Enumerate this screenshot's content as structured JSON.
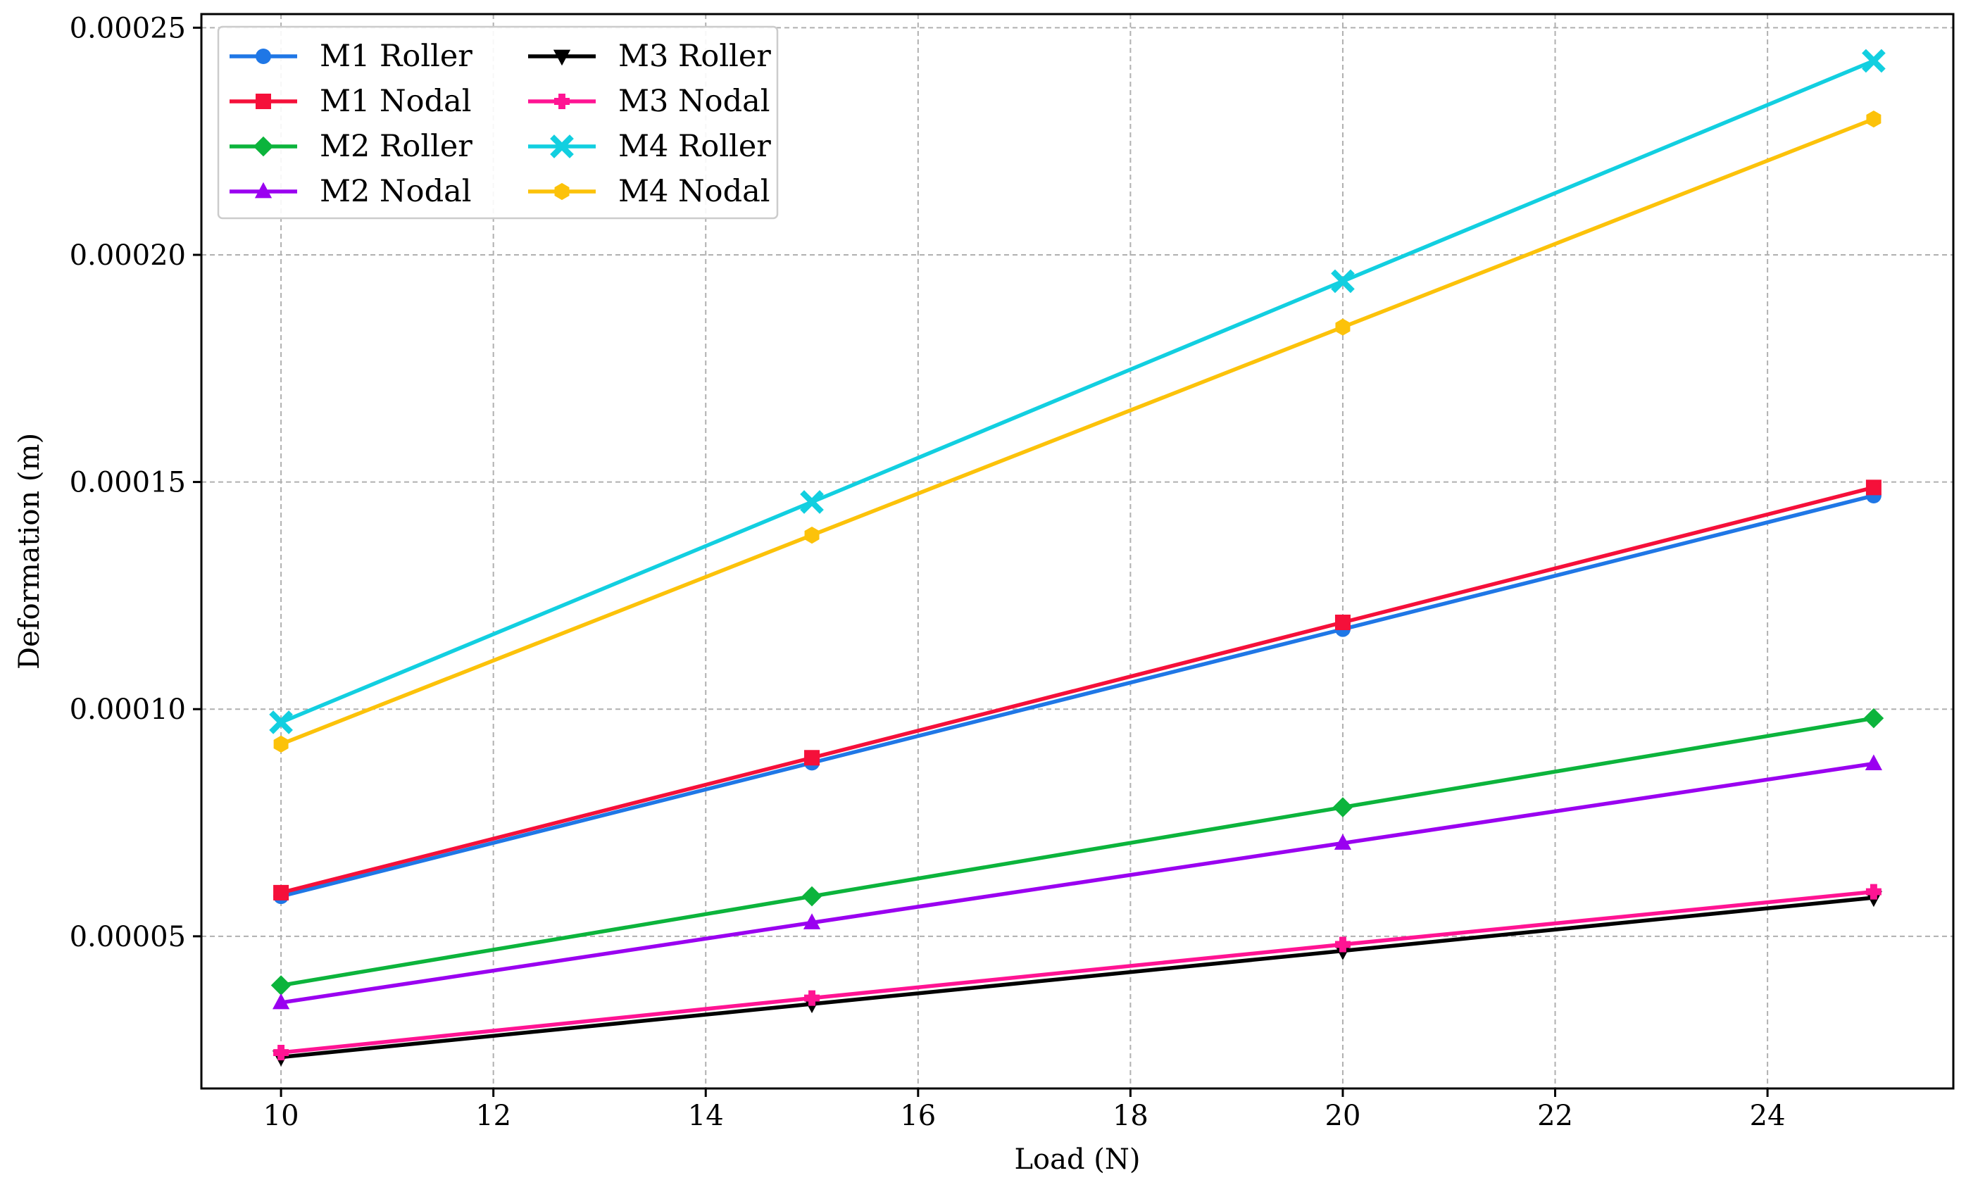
{
  "chart_data": {
    "type": "line",
    "xlabel": "Load (N)",
    "ylabel": "Deformation (m)",
    "x": [
      10,
      15,
      20,
      25
    ],
    "xlim": [
      9.25,
      25.75
    ],
    "ylim": [
      1.65e-05,
      0.000253
    ],
    "x_ticks": [
      10,
      12,
      14,
      16,
      18,
      20,
      22,
      24
    ],
    "x_tick_labels": [
      "10",
      "12",
      "14",
      "16",
      "18",
      "20",
      "22",
      "24"
    ],
    "y_ticks": [
      5e-05,
      0.0001,
      0.00015,
      0.0002,
      0.00025
    ],
    "y_tick_labels": [
      "0.00005",
      "0.00010",
      "0.00015",
      "0.00020",
      "0.00025"
    ],
    "grid": true,
    "legend_placement": "top-left",
    "legend_columns": 2,
    "series": [
      {
        "name": "M1 Roller",
        "color": "#1f77e6",
        "marker": "circle",
        "values": [
          5.88e-05,
          8.82e-05,
          0.0001176,
          0.000147
        ]
      },
      {
        "name": "M1 Nodal",
        "color": "#f5103a",
        "marker": "square",
        "values": [
          5.96e-05,
          8.93e-05,
          0.0001191,
          0.0001488
        ]
      },
      {
        "name": "M2 Roller",
        "color": "#0cb43c",
        "marker": "diamond",
        "values": [
          3.92e-05,
          5.88e-05,
          7.84e-05,
          9.8e-05
        ]
      },
      {
        "name": "M2 Nodal",
        "color": "#9a00f0",
        "marker": "triangle-up",
        "values": [
          3.54e-05,
          5.3e-05,
          7.05e-05,
          8.8e-05
        ]
      },
      {
        "name": "M3 Roller",
        "color": "#000000",
        "marker": "triangle-down",
        "values": [
          2.34e-05,
          3.51e-05,
          4.68e-05,
          5.85e-05
        ]
      },
      {
        "name": "M3 Nodal",
        "color": "#ff1493",
        "marker": "plus",
        "values": [
          2.44e-05,
          3.64e-05,
          4.82e-05,
          5.98e-05
        ]
      },
      {
        "name": "M4 Roller",
        "color": "#12cfe0",
        "marker": "x",
        "values": [
          9.71e-05,
          0.0001456,
          0.0001942,
          0.0002427
        ]
      },
      {
        "name": "M4 Nodal",
        "color": "#fcc20a",
        "marker": "hexagon",
        "values": [
          9.23e-05,
          0.0001383,
          0.0001841,
          0.0002299
        ]
      }
    ]
  }
}
